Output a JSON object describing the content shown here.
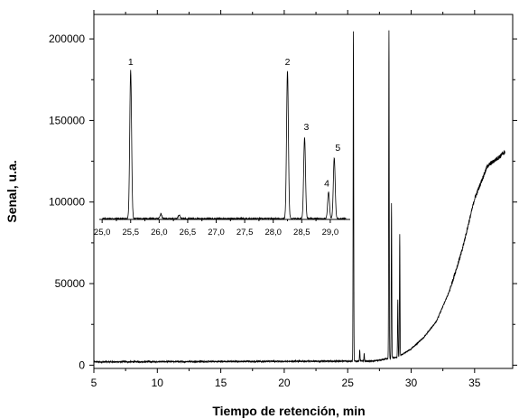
{
  "chart_data": [
    {
      "type": "line",
      "title": "",
      "xlabel": "Tiempo de retención, min",
      "ylabel": "Senal, u.a.",
      "xlim": [
        5,
        38
      ],
      "ylim": [
        -2000,
        215000
      ],
      "x_ticks": [
        5,
        10,
        15,
        20,
        25,
        30,
        35
      ],
      "x_tick_labels": [
        "5",
        "10",
        "15",
        "20",
        "25",
        "30",
        "35"
      ],
      "y_ticks": [
        0,
        50000,
        100000,
        150000,
        200000
      ],
      "y_tick_labels": [
        "0",
        "50000",
        "100000",
        "150000",
        "200000"
      ],
      "grid": false,
      "legend": "none",
      "series": [
        {
          "color": "#000000",
          "baseline": 2000,
          "peaks": [
            {
              "x": 25.45,
              "y": 205000
            },
            {
              "x": 25.95,
              "y": 9000
            },
            {
              "x": 26.3,
              "y": 7000
            },
            {
              "x": 28.25,
              "y": 205000
            },
            {
              "x": 28.45,
              "y": 99000
            },
            {
              "x": 28.95,
              "y": 40000
            },
            {
              "x": 29.1,
              "y": 80000
            }
          ],
          "drift": [
            {
              "x": 5,
              "y": 2000
            },
            {
              "x": 27,
              "y": 2500
            },
            {
              "x": 29,
              "y": 5000
            },
            {
              "x": 30,
              "y": 10000
            },
            {
              "x": 31,
              "y": 17000
            },
            {
              "x": 32,
              "y": 27000
            },
            {
              "x": 33,
              "y": 45000
            },
            {
              "x": 34,
              "y": 70000
            },
            {
              "x": 35,
              "y": 102000
            },
            {
              "x": 36,
              "y": 122000
            },
            {
              "x": 37,
              "y": 128000
            },
            {
              "x": 37.4,
              "y": 131000
            }
          ]
        }
      ]
    },
    {
      "type": "line",
      "title": "",
      "xlabel": "",
      "ylabel": "",
      "xlim": [
        24.95,
        29.35
      ],
      "x_ticks": [
        25.0,
        25.5,
        26.0,
        26.5,
        27.0,
        27.5,
        28.0,
        28.5,
        29.0
      ],
      "x_tick_labels": [
        "25,0",
        "25,5",
        "26,0",
        "26,5",
        "27,0",
        "27,5",
        "28,0",
        "28,5",
        "29,0"
      ],
      "y_axis_shown": false,
      "annotations": [
        "1",
        "2",
        "3",
        "4",
        "5"
      ],
      "series": [
        {
          "color": "#000000",
          "peaks": [
            {
              "label": "1",
              "x": 25.5,
              "height": 1.0
            },
            {
              "x": 26.03,
              "height": 0.03
            },
            {
              "x": 26.35,
              "height": 0.025
            },
            {
              "label": "2",
              "x": 28.25,
              "height": 1.0
            },
            {
              "label": "3",
              "x": 28.55,
              "height": 0.55
            },
            {
              "label": "4",
              "x": 28.97,
              "height": 0.18
            },
            {
              "label": "5",
              "x": 29.07,
              "height": 0.41
            }
          ]
        }
      ]
    }
  ]
}
